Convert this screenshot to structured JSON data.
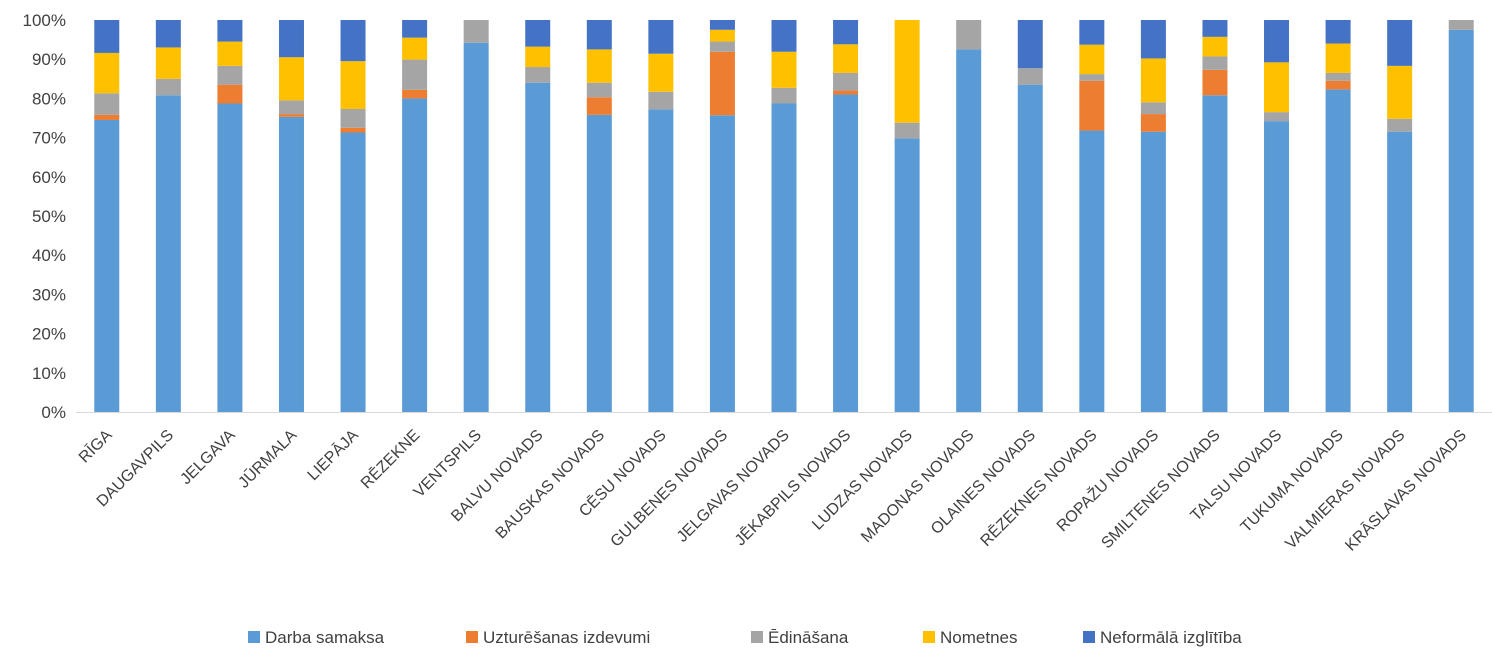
{
  "chart_data": {
    "type": "bar",
    "stacked": true,
    "percent": true,
    "title": "",
    "xlabel": "",
    "ylabel": "",
    "ylim": [
      0,
      100
    ],
    "yticks": [
      "0%",
      "10%",
      "20%",
      "30%",
      "40%",
      "50%",
      "60%",
      "70%",
      "80%",
      "90%",
      "100%"
    ],
    "grid": false,
    "legend_position": "bottom",
    "categories": [
      "RĪGA",
      "DAUGAVPILS",
      "JELGAVA",
      "JŪRMALA",
      "LIEPĀJA",
      "RĒZEKNE",
      "VENTSPILS",
      "BALVU NOVADS",
      "BAUSKAS NOVADS",
      "CĒSU NOVADS",
      "GULBENES NOVADS",
      "JELGAVAS NOVADS",
      "JĒKABPILS NOVADS",
      "LUDZAS NOVADS",
      "MADONAS NOVADS",
      "OLAINES NOVADS",
      "RĒZEKNES NOVADS",
      "ROPAŽU NOVADS",
      "SMILTENES NOVADS",
      "TALSU NOVADS",
      "TUKUMA NOVADS",
      "VALMIERAS NOVADS",
      "KRĀSLAVAS NOVADS"
    ],
    "series": [
      {
        "name": "Darba samaksa",
        "color": "#5B9BD5",
        "values": [
          74.5,
          80.8,
          78.7,
          75.3,
          71.3,
          80.0,
          94.2,
          84.0,
          75.8,
          77.2,
          75.7,
          78.7,
          81.0,
          69.8,
          92.5,
          83.5,
          71.8,
          71.5,
          80.8,
          74.2,
          82.3,
          71.5,
          97.5
        ]
      },
      {
        "name": "Uzturēšanas izdevumi",
        "color": "#ED7D31",
        "values": [
          1.3,
          0,
          4.8,
          0.7,
          1.2,
          2.2,
          0,
          0,
          4.5,
          0,
          16.2,
          0,
          1.0,
          0,
          0,
          0,
          12.7,
          4.5,
          6.5,
          0,
          2.2,
          0,
          0
        ]
      },
      {
        "name": "Ēdināšana",
        "color": "#A5A5A5",
        "values": [
          5.5,
          4.2,
          4.8,
          3.5,
          4.8,
          7.7,
          5.8,
          4.0,
          3.7,
          4.5,
          2.6,
          4.0,
          4.5,
          4.0,
          7.5,
          4.2,
          1.7,
          3.0,
          3.4,
          2.3,
          2.0,
          3.3,
          2.5
        ]
      },
      {
        "name": "Nometnes",
        "color": "#FFC000",
        "values": [
          10.3,
          8.0,
          6.2,
          11.0,
          12.2,
          5.6,
          0,
          5.2,
          8.5,
          9.7,
          3.0,
          9.2,
          7.3,
          26.2,
          0,
          0,
          7.5,
          11.2,
          5.0,
          12.7,
          7.5,
          13.5,
          0
        ]
      },
      {
        "name": "Neformālā izglītība",
        "color": "#4472C4",
        "values": [
          8.4,
          7.0,
          5.5,
          9.5,
          10.5,
          4.5,
          0,
          6.8,
          7.5,
          8.6,
          2.5,
          8.1,
          6.2,
          0,
          0,
          12.3,
          6.3,
          9.8,
          4.3,
          10.8,
          6.0,
          11.7,
          0
        ]
      }
    ]
  }
}
